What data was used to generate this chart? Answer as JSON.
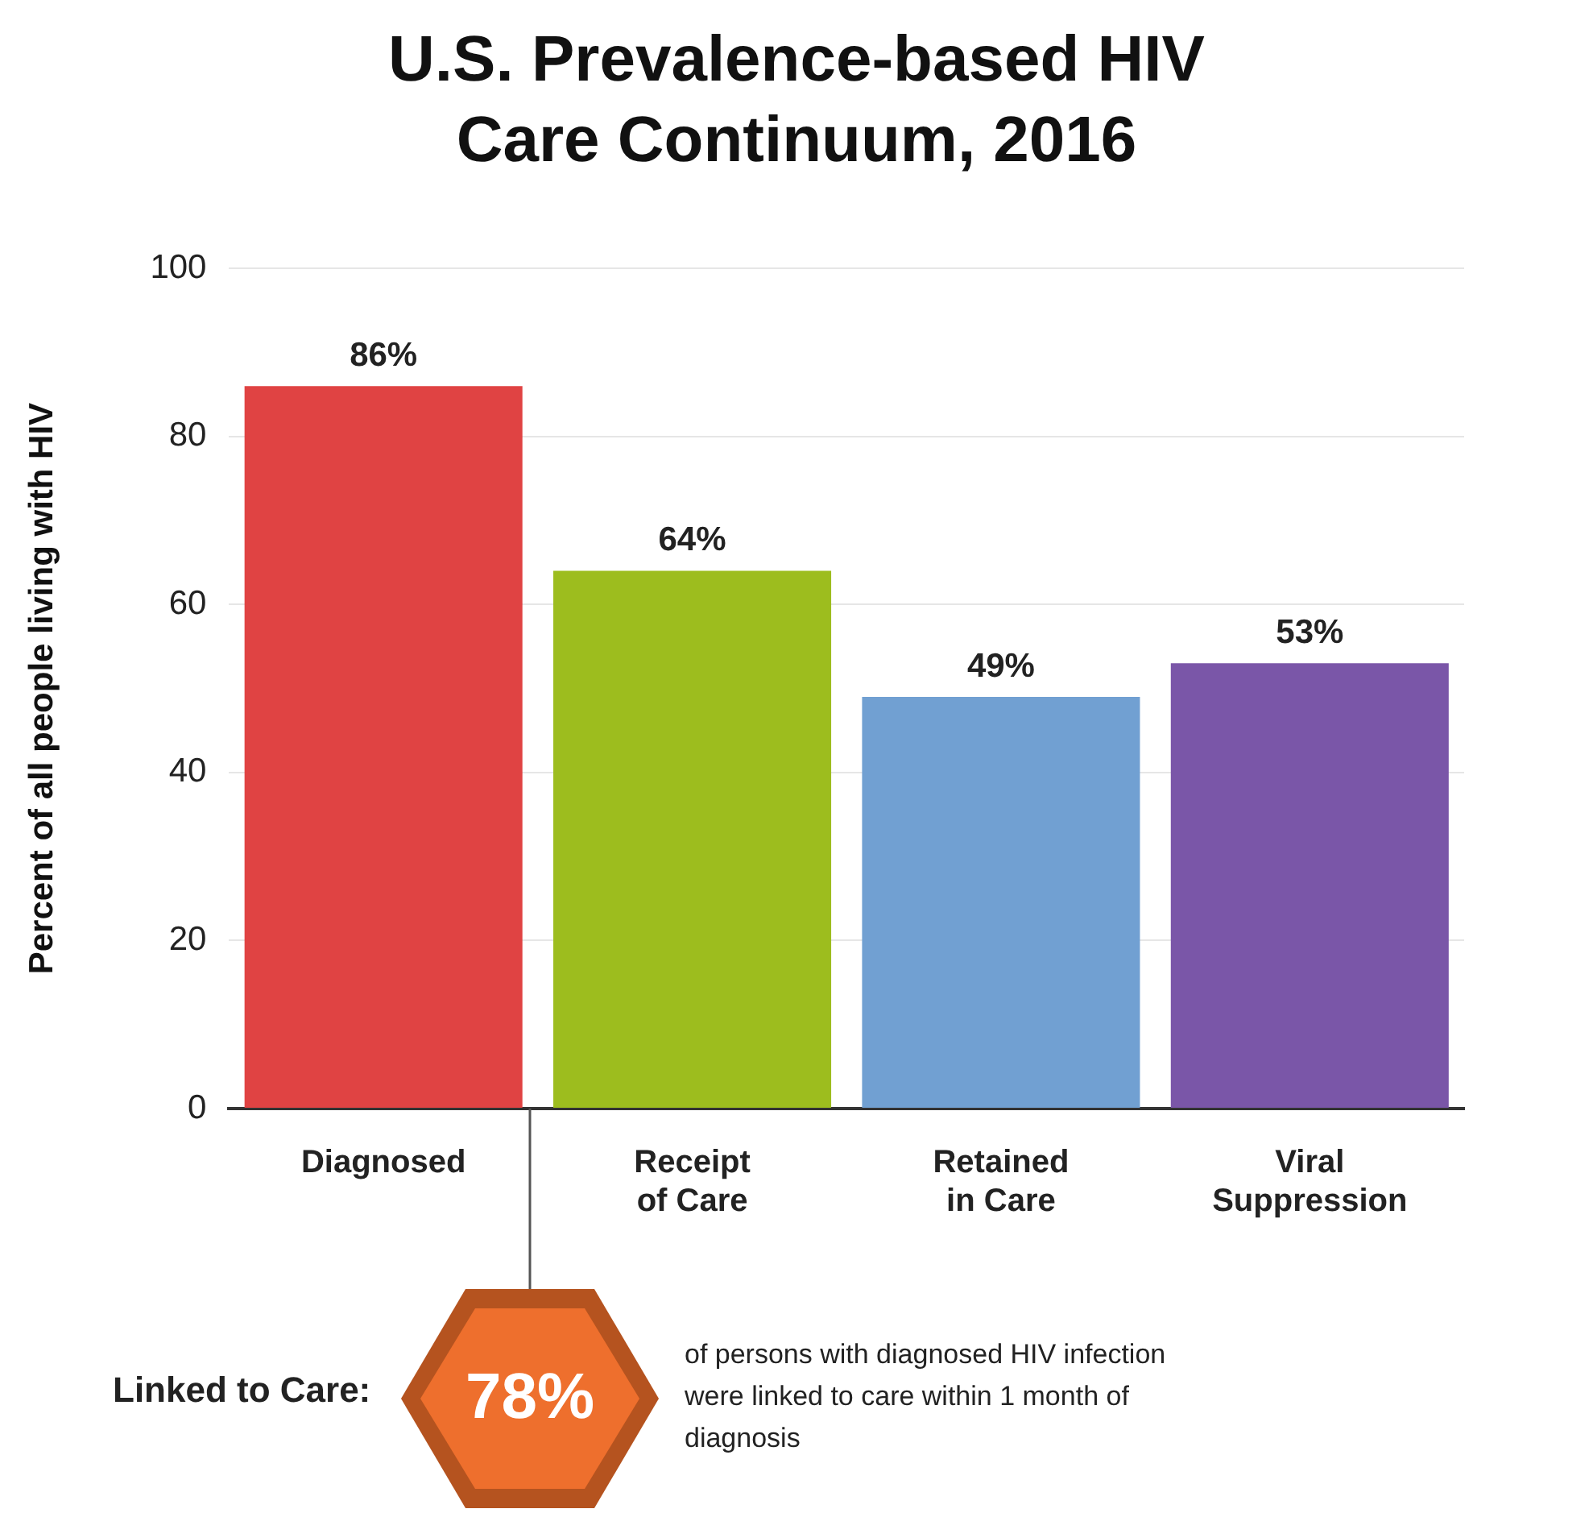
{
  "chart_data": {
    "type": "bar",
    "title": "U.S. Prevalence-based HIV Care Continuum, 2016",
    "ylabel": "Percent of all people living with HIV",
    "categories": [
      "Diagnosed",
      "Receipt of Care",
      "Retained in Care",
      "Viral Suppression"
    ],
    "values": [
      86,
      64,
      49,
      53
    ],
    "colors": [
      "#e04343",
      "#9dbd1e",
      "#71a0d2",
      "#7a56a8"
    ],
    "value_labels": [
      "86%",
      "64%",
      "49%",
      "53%"
    ],
    "ylim": [
      0,
      100
    ],
    "yticks": [
      0,
      20,
      40,
      60,
      80,
      100
    ],
    "grid": "y",
    "legend": false,
    "annotations": [
      "Linked to Care:",
      "78%",
      "of persons with diagnosed HIV infection were linked to care within 1 month of diagnosis"
    ]
  }
}
